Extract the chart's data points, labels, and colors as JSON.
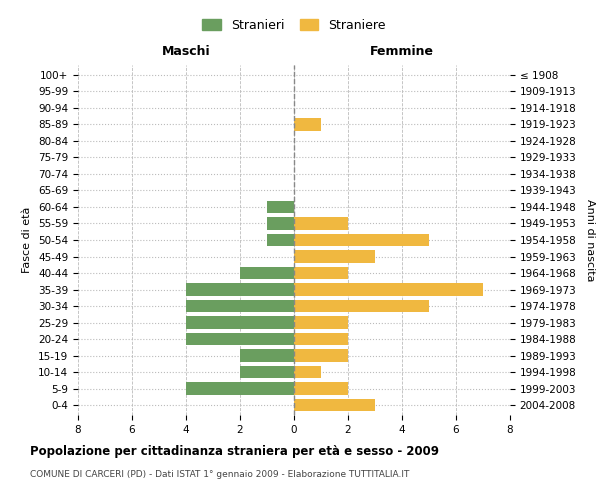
{
  "age_groups_bottom_to_top": [
    "0-4",
    "5-9",
    "10-14",
    "15-19",
    "20-24",
    "25-29",
    "30-34",
    "35-39",
    "40-44",
    "45-49",
    "50-54",
    "55-59",
    "60-64",
    "65-69",
    "70-74",
    "75-79",
    "80-84",
    "85-89",
    "90-94",
    "95-99",
    "100+"
  ],
  "birth_years_bottom_to_top": [
    "2004-2008",
    "1999-2003",
    "1994-1998",
    "1989-1993",
    "1984-1988",
    "1979-1983",
    "1974-1978",
    "1969-1973",
    "1964-1968",
    "1959-1963",
    "1954-1958",
    "1949-1953",
    "1944-1948",
    "1939-1943",
    "1934-1938",
    "1929-1933",
    "1924-1928",
    "1919-1923",
    "1914-1918",
    "1909-1913",
    "≤ 1908"
  ],
  "stranieri_bottom_to_top": [
    0,
    4,
    2,
    2,
    4,
    4,
    4,
    4,
    2,
    0,
    1,
    1,
    1,
    0,
    0,
    0,
    0,
    0,
    0,
    0,
    0
  ],
  "straniere_bottom_to_top": [
    3,
    2,
    1,
    2,
    2,
    2,
    5,
    7,
    2,
    3,
    5,
    2,
    0,
    0,
    0,
    0,
    0,
    1,
    0,
    0,
    0
  ],
  "color_stranieri": "#6a9e5f",
  "color_straniere": "#f0b840",
  "xlim": 8,
  "header_left": "Maschi",
  "header_right": "Femmine",
  "ylabel_left": "Fasce di età",
  "ylabel_right": "Anni di nascita",
  "title": "Popolazione per cittadinanza straniera per età e sesso - 2009",
  "subtitle": "COMUNE DI CARCERI (PD) - Dati ISTAT 1° gennaio 2009 - Elaborazione TUTTITALIA.IT",
  "legend_stranieri": "Stranieri",
  "legend_straniere": "Straniere",
  "bg_color": "#ffffff",
  "grid_color": "#bbbbbb",
  "bar_height": 0.75
}
